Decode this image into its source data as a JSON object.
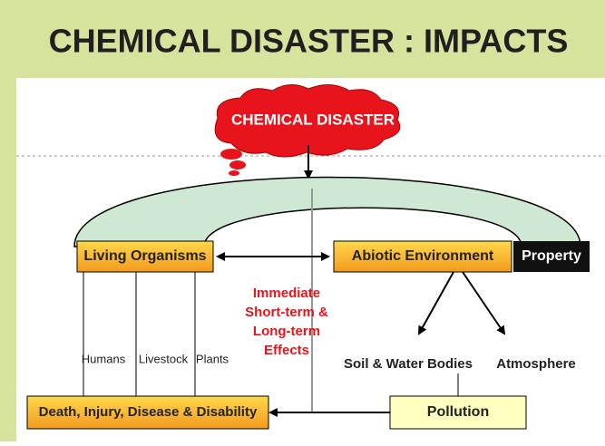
{
  "header": {
    "title": "CHEMICAL DISASTER : IMPACTS"
  },
  "nodes": {
    "source": "CHEMICAL DISASTER",
    "living": "Living Organisms",
    "abiotic": "Abiotic Environment",
    "property": "Property",
    "effects": [
      "Immediate",
      "Short-term &",
      "Long-term",
      "Effects"
    ],
    "humans": "Humans",
    "livestock": "Livestock",
    "plants": "Plants",
    "soil": "Soil & Water Bodies",
    "atmosphere": "Atmosphere",
    "pollution": "Pollution",
    "outcome": "Death, Injury, Disease & Disability"
  }
}
